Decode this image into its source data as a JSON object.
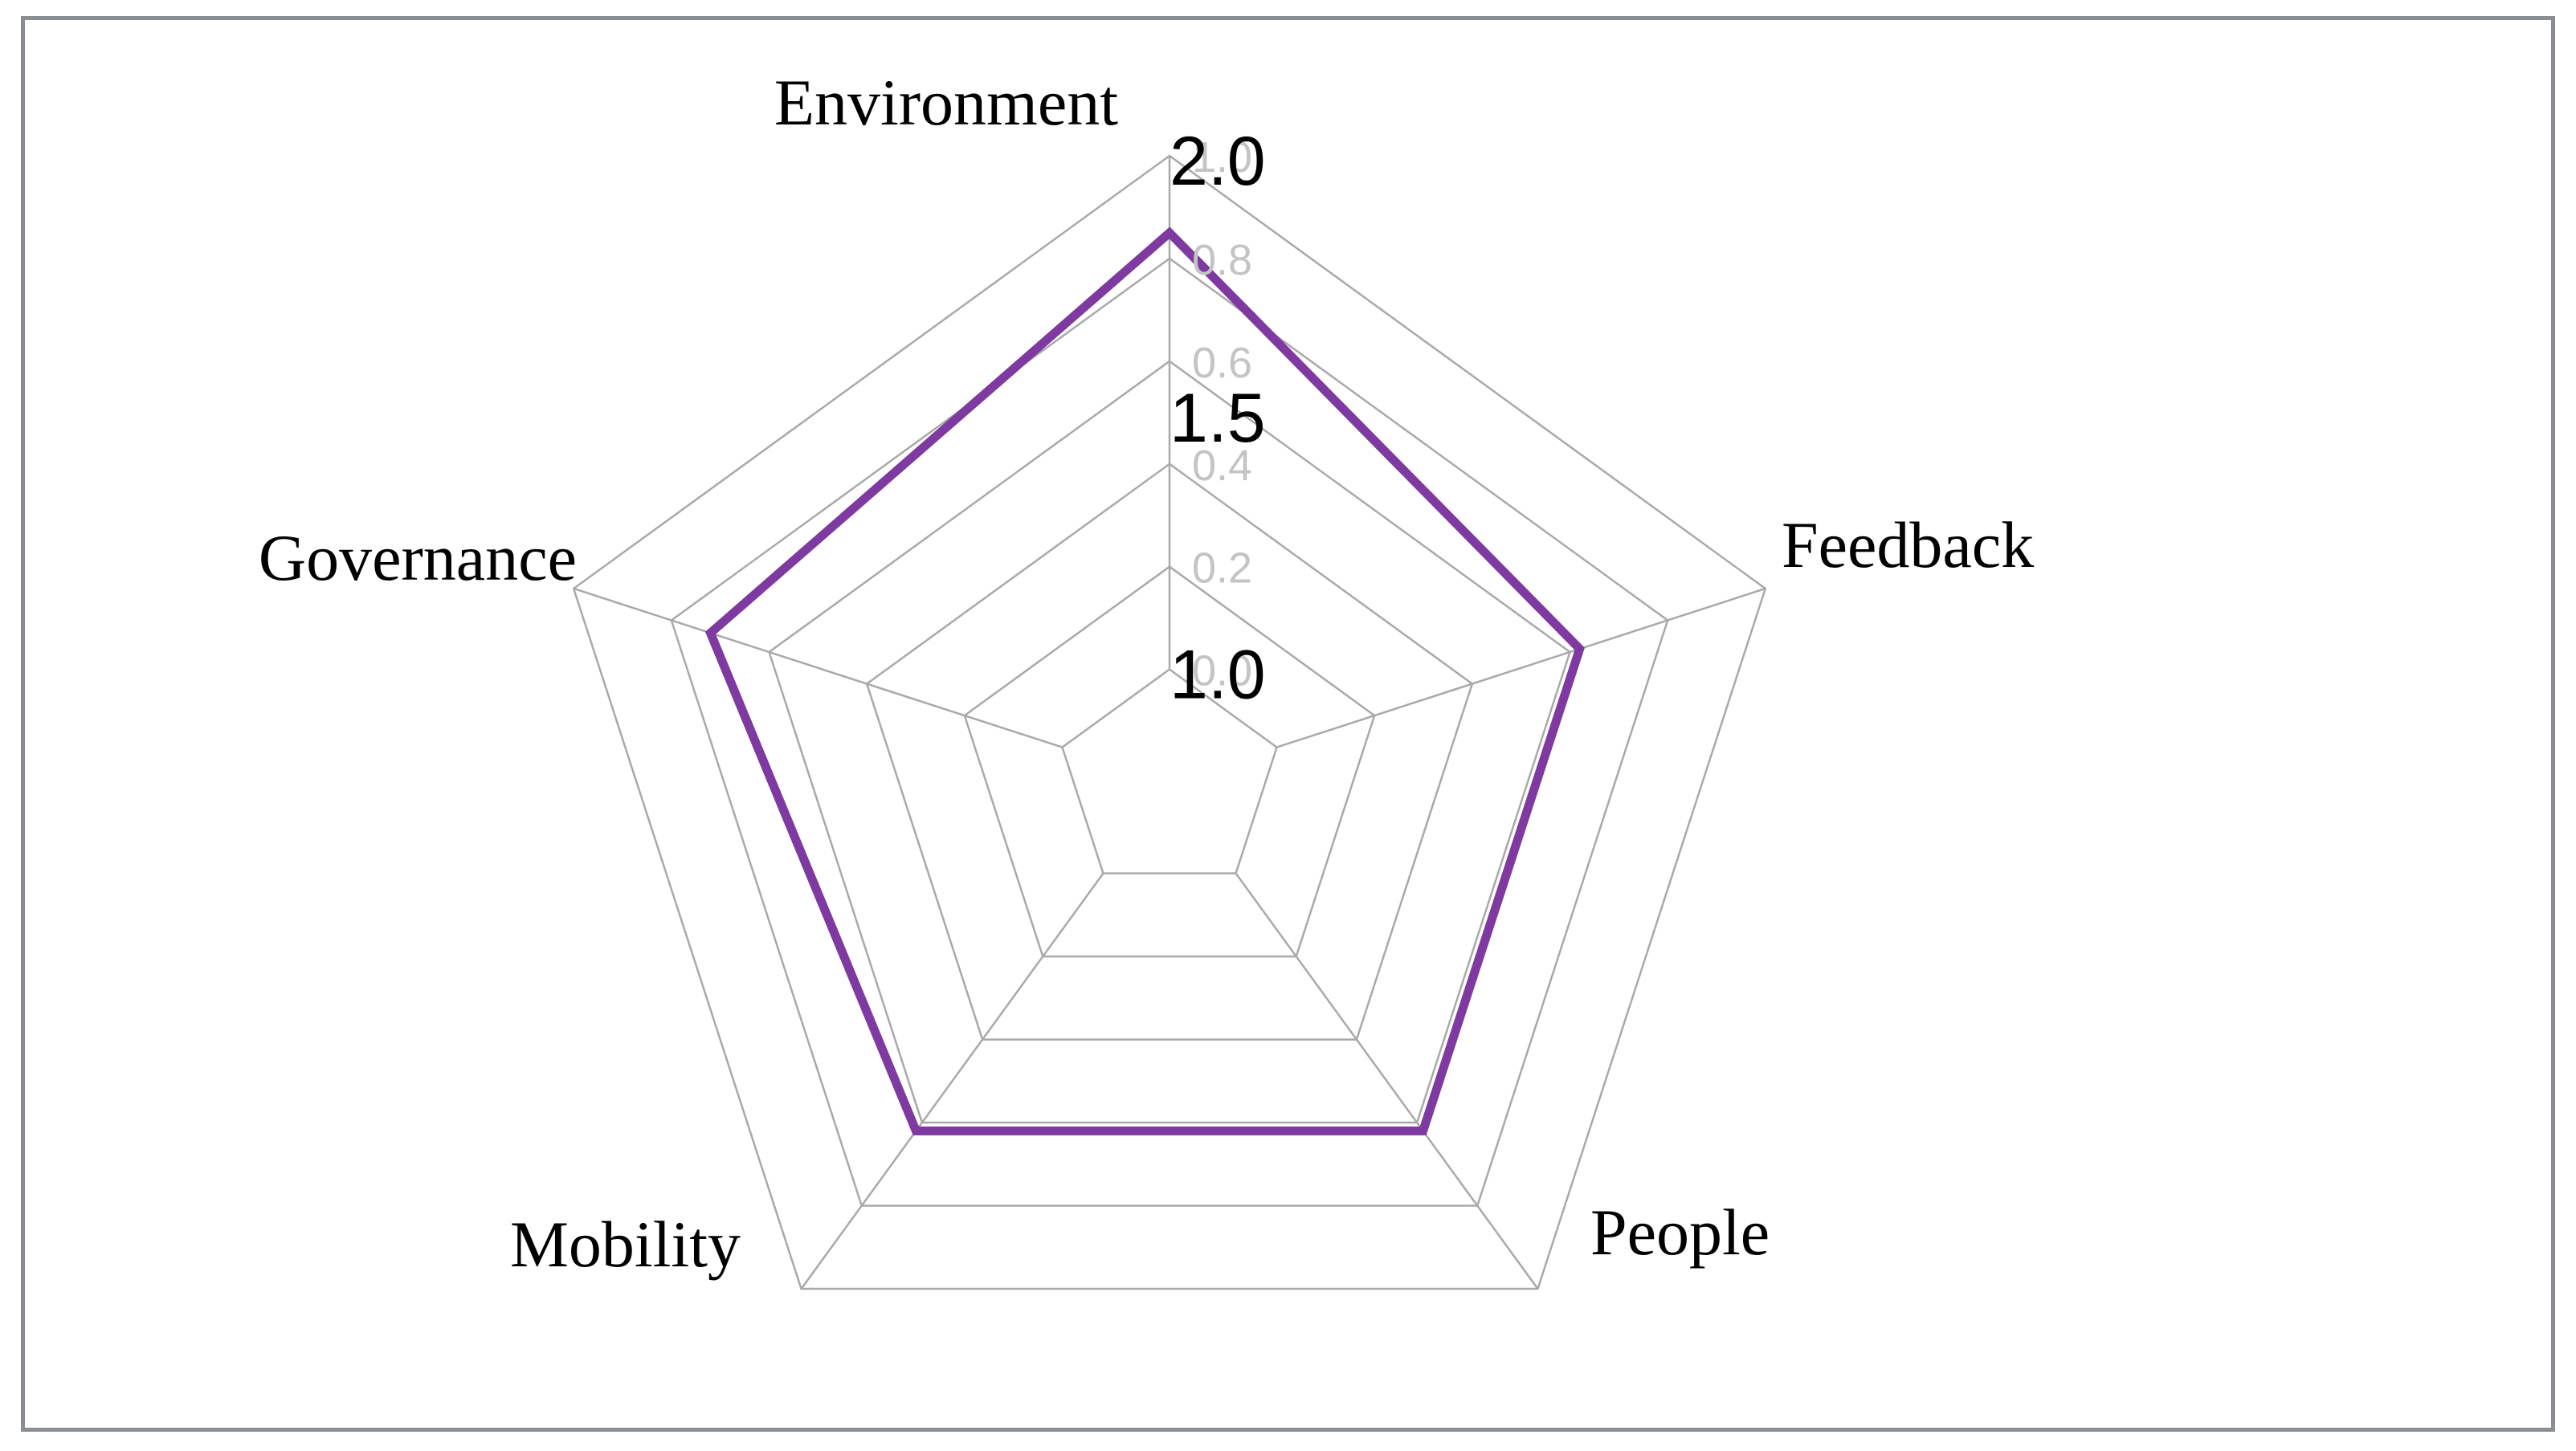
{
  "chart_data": {
    "type": "radar",
    "title": "",
    "axes": [
      "Environment",
      "Feedback",
      "People",
      "Mobility",
      "Governance"
    ],
    "series": [
      {
        "values": [
          0.85,
          0.62,
          0.62,
          0.62,
          0.72
        ]
      }
    ],
    "rlim": [
      0.0,
      1.0
    ],
    "ring_levels": [
      0.2,
      0.4,
      0.6,
      0.8,
      1.0
    ],
    "tick_labels_grey": [
      "0.0",
      "0.2",
      "0.4",
      "0.6",
      "0.8",
      "1.0"
    ],
    "tick_labels_grey_values": [
      0.0,
      0.2,
      0.4,
      0.6,
      0.8,
      1.0
    ],
    "tick_labels_dark": [
      "1.0",
      "1.5",
      "2.0"
    ],
    "tick_labels_dark_values": [
      0.0,
      0.5,
      1.0
    ],
    "grid": true,
    "legend": "none"
  },
  "colors": {
    "series_line": "#7e3aa0",
    "grid_line": "#a9a9a9",
    "frame_border": "#8a8e94"
  }
}
